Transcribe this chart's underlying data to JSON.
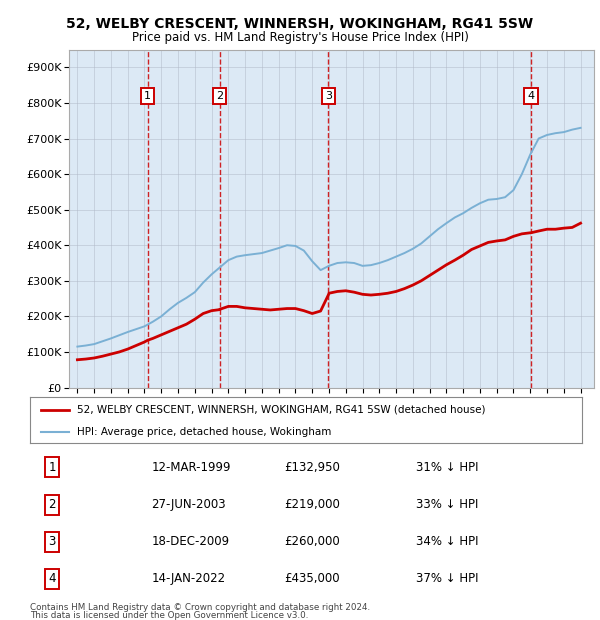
{
  "title": "52, WELBY CRESCENT, WINNERSH, WOKINGHAM, RG41 5SW",
  "subtitle": "Price paid vs. HM Land Registry's House Price Index (HPI)",
  "background_color": "#dce9f5",
  "ylim": [
    0,
    950000
  ],
  "yticks": [
    0,
    100000,
    200000,
    300000,
    400000,
    500000,
    600000,
    700000,
    800000,
    900000
  ],
  "ytick_labels": [
    "£0",
    "£100K",
    "£200K",
    "£300K",
    "£400K",
    "£500K",
    "£600K",
    "£700K",
    "£800K",
    "£900K"
  ],
  "transactions": [
    {
      "date": 1999.19,
      "price": 132950,
      "label": "1"
    },
    {
      "date": 2003.49,
      "price": 219000,
      "label": "2"
    },
    {
      "date": 2009.96,
      "price": 260000,
      "label": "3"
    },
    {
      "date": 2022.04,
      "price": 435000,
      "label": "4"
    }
  ],
  "legend_items": [
    {
      "label": "52, WELBY CRESCENT, WINNERSH, WOKINGHAM, RG41 5SW (detached house)",
      "color": "#cc0000",
      "lw": 2.0
    },
    {
      "label": "HPI: Average price, detached house, Wokingham",
      "color": "#7ab0d4",
      "lw": 1.5
    }
  ],
  "table_rows": [
    {
      "num": "1",
      "date": "12-MAR-1999",
      "price": "£132,950",
      "note": "31% ↓ HPI"
    },
    {
      "num": "2",
      "date": "27-JUN-2003",
      "price": "£219,000",
      "note": "33% ↓ HPI"
    },
    {
      "num": "3",
      "date": "18-DEC-2009",
      "price": "£260,000",
      "note": "34% ↓ HPI"
    },
    {
      "num": "4",
      "date": "14-JAN-2022",
      "price": "£435,000",
      "note": "37% ↓ HPI"
    }
  ],
  "footnote1": "Contains HM Land Registry data © Crown copyright and database right 2024.",
  "footnote2": "This data is licensed under the Open Government Licence v3.0.",
  "red_line_color": "#cc0000",
  "blue_line_color": "#7ab0d4",
  "vline_color": "#cc0000",
  "grid_color": "#b0b8c8",
  "hpi_years": [
    1995.0,
    1995.5,
    1996.0,
    1996.5,
    1997.0,
    1997.5,
    1998.0,
    1998.5,
    1999.0,
    1999.5,
    2000.0,
    2000.5,
    2001.0,
    2001.5,
    2002.0,
    2002.5,
    2003.0,
    2003.5,
    2004.0,
    2004.5,
    2005.0,
    2005.5,
    2006.0,
    2006.5,
    2007.0,
    2007.5,
    2008.0,
    2008.5,
    2009.0,
    2009.5,
    2010.0,
    2010.5,
    2011.0,
    2011.5,
    2012.0,
    2012.5,
    2013.0,
    2013.5,
    2014.0,
    2014.5,
    2015.0,
    2015.5,
    2016.0,
    2016.5,
    2017.0,
    2017.5,
    2018.0,
    2018.5,
    2019.0,
    2019.5,
    2020.0,
    2020.5,
    2021.0,
    2021.5,
    2022.0,
    2022.5,
    2023.0,
    2023.5,
    2024.0,
    2024.5,
    2025.0
  ],
  "hpi_vals": [
    115000,
    118000,
    122000,
    130000,
    138000,
    147000,
    156000,
    164000,
    172000,
    185000,
    200000,
    220000,
    238000,
    252000,
    268000,
    295000,
    318000,
    338000,
    358000,
    368000,
    372000,
    375000,
    378000,
    385000,
    392000,
    400000,
    398000,
    385000,
    355000,
    330000,
    342000,
    350000,
    352000,
    350000,
    342000,
    344000,
    350000,
    358000,
    368000,
    378000,
    390000,
    405000,
    425000,
    445000,
    462000,
    478000,
    490000,
    505000,
    518000,
    528000,
    530000,
    535000,
    555000,
    600000,
    655000,
    700000,
    710000,
    715000,
    718000,
    725000,
    730000
  ],
  "red_years": [
    1995.0,
    1995.5,
    1996.0,
    1996.5,
    1997.0,
    1997.5,
    1998.0,
    1998.5,
    1999.0,
    1999.19,
    1999.5,
    2000.0,
    2000.5,
    2001.0,
    2001.5,
    2002.0,
    2002.5,
    2003.0,
    2003.49,
    2003.5,
    2004.0,
    2004.5,
    2005.0,
    2005.5,
    2006.0,
    2006.5,
    2007.0,
    2007.5,
    2008.0,
    2008.5,
    2009.0,
    2009.5,
    2009.96,
    2010.0,
    2010.5,
    2011.0,
    2011.5,
    2012.0,
    2012.5,
    2013.0,
    2013.5,
    2014.0,
    2014.5,
    2015.0,
    2015.5,
    2016.0,
    2016.5,
    2017.0,
    2017.5,
    2018.0,
    2018.5,
    2019.0,
    2019.5,
    2020.0,
    2020.5,
    2021.0,
    2021.5,
    2022.0,
    2022.04,
    2022.5,
    2023.0,
    2023.5,
    2024.0,
    2024.5,
    2025.0
  ],
  "red_vals": [
    78000,
    80000,
    83000,
    88000,
    94000,
    100000,
    108000,
    118000,
    128000,
    132950,
    138000,
    148000,
    158000,
    168000,
    178000,
    192000,
    208000,
    216000,
    219000,
    220000,
    228000,
    228000,
    224000,
    222000,
    220000,
    218000,
    220000,
    222000,
    222000,
    216000,
    208000,
    215000,
    260000,
    265000,
    270000,
    272000,
    268000,
    262000,
    260000,
    262000,
    265000,
    270000,
    278000,
    288000,
    300000,
    315000,
    330000,
    345000,
    358000,
    372000,
    388000,
    398000,
    408000,
    412000,
    415000,
    425000,
    432000,
    435000,
    435000,
    440000,
    445000,
    445000,
    448000,
    450000,
    462000
  ]
}
